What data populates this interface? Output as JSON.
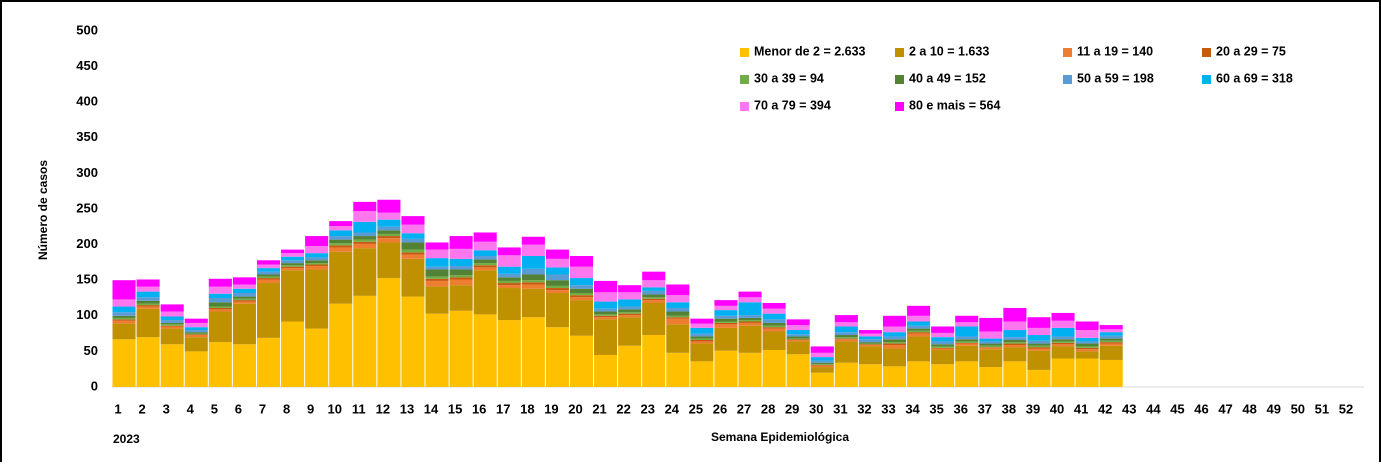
{
  "chart_data": {
    "type": "stacked-bar",
    "y_label": "Número de casos",
    "x_label": "Semana Epidemiológica",
    "year_label": "2023",
    "categories": [
      "1",
      "2",
      "3",
      "4",
      "5",
      "6",
      "7",
      "8",
      "9",
      "10",
      "11",
      "12",
      "13",
      "14",
      "15",
      "16",
      "17",
      "18",
      "19",
      "20",
      "21",
      "22",
      "23",
      "24",
      "25",
      "26",
      "27",
      "28",
      "29",
      "30",
      "31",
      "32",
      "33",
      "34",
      "35",
      "36",
      "37",
      "38",
      "39",
      "40",
      "41",
      "42",
      "43",
      "44",
      "45",
      "46",
      "47",
      "48",
      "49",
      "50",
      "51",
      "52"
    ],
    "ylim": [
      0,
      500
    ],
    "yticks": [
      0,
      50,
      100,
      150,
      200,
      250,
      300,
      350,
      400,
      450,
      500
    ],
    "series": [
      {
        "name": "Menor de 2 = 2.633",
        "color": "#ffc000",
        "values": [
          67,
          70,
          60,
          50,
          63,
          60,
          69,
          92,
          82,
          117,
          128,
          153,
          127,
          103,
          107,
          102,
          94,
          98,
          84,
          72,
          45,
          58,
          73,
          48,
          36,
          51,
          48,
          52,
          46,
          20,
          34,
          32,
          29,
          36,
          32,
          36,
          28,
          36,
          24,
          40,
          40,
          38,
          null,
          null,
          null,
          null,
          null,
          null,
          null,
          null,
          null,
          null
        ]
      },
      {
        "name": "2 a 10 = 1.633",
        "color": "#bf9000",
        "values": [
          22,
          40,
          22,
          20,
          43,
          57,
          77,
          72,
          83,
          73,
          67,
          50,
          53,
          38,
          36,
          62,
          45,
          40,
          48,
          50,
          50,
          40,
          45,
          40,
          25,
          32,
          38,
          26,
          18,
          8,
          30,
          25,
          25,
          35,
          20,
          22,
          25,
          20,
          27,
          17,
          10,
          20,
          null,
          null,
          null,
          null,
          null,
          null,
          null,
          null,
          null,
          null
        ]
      },
      {
        "name": "11 a 19 = 140",
        "color": "#ed7d31",
        "values": [
          4,
          3,
          3,
          3,
          3,
          3,
          5,
          3,
          5,
          6,
          6,
          6,
          6,
          8,
          8,
          4,
          4,
          6,
          4,
          4,
          3,
          3,
          4,
          8,
          3,
          5,
          4,
          4,
          2,
          2,
          3,
          2,
          5,
          4,
          2,
          3,
          2,
          3,
          3,
          3,
          3,
          3,
          null,
          null,
          null,
          null,
          null,
          null,
          null,
          null,
          null,
          null
        ]
      },
      {
        "name": "20 a 29 = 75",
        "color": "#c55a11",
        "values": [
          2,
          2,
          1,
          1,
          2,
          2,
          2,
          2,
          2,
          3,
          3,
          3,
          3,
          3,
          3,
          3,
          3,
          3,
          3,
          3,
          2,
          2,
          2,
          2,
          2,
          2,
          2,
          2,
          1,
          1,
          1,
          1,
          2,
          2,
          1,
          1,
          1,
          2,
          2,
          2,
          2,
          2,
          null,
          null,
          null,
          null,
          null,
          null,
          null,
          null,
          null,
          null
        ]
      },
      {
        "name": "30 a 39 = 94",
        "color": "#70ad47",
        "values": [
          2,
          2,
          2,
          1,
          2,
          2,
          2,
          2,
          2,
          3,
          3,
          3,
          4,
          3,
          3,
          3,
          3,
          3,
          3,
          3,
          2,
          2,
          2,
          2,
          2,
          2,
          2,
          2,
          1,
          1,
          2,
          1,
          2,
          2,
          2,
          2,
          2,
          2,
          2,
          2,
          2,
          2,
          null,
          null,
          null,
          null,
          null,
          null,
          null,
          null,
          null,
          null
        ]
      },
      {
        "name": "40 a 49 = 152",
        "color": "#548235",
        "values": [
          3,
          4,
          2,
          2,
          6,
          3,
          3,
          3,
          4,
          5,
          5,
          5,
          10,
          10,
          8,
          5,
          5,
          8,
          8,
          6,
          4,
          4,
          4,
          6,
          3,
          4,
          3,
          4,
          3,
          2,
          3,
          2,
          4,
          3,
          3,
          3,
          3,
          3,
          3,
          3,
          4,
          3,
          null,
          null,
          null,
          null,
          null,
          null,
          null,
          null,
          null,
          null
        ]
      },
      {
        "name": "50 a 59 = 198",
        "color": "#5b9bd5",
        "values": [
          5,
          5,
          4,
          3,
          6,
          5,
          4,
          4,
          4,
          5,
          5,
          5,
          5,
          4,
          5,
          5,
          5,
          8,
          8,
          5,
          4,
          4,
          5,
          5,
          4,
          4,
          4,
          5,
          3,
          3,
          4,
          4,
          4,
          4,
          4,
          4,
          3,
          4,
          4,
          4,
          3,
          4,
          null,
          null,
          null,
          null,
          null,
          null,
          null,
          null,
          null,
          null
        ]
      },
      {
        "name": "60 a 69 = 318",
        "color": "#00b0f0",
        "values": [
          8,
          8,
          5,
          4,
          6,
          6,
          5,
          5,
          6,
          8,
          15,
          10,
          8,
          12,
          10,
          8,
          10,
          18,
          10,
          10,
          10,
          10,
          5,
          8,
          8,
          8,
          18,
          8,
          6,
          5,
          8,
          4,
          6,
          6,
          6,
          14,
          4,
          10,
          8,
          12,
          5,
          5,
          null,
          null,
          null,
          null,
          null,
          null,
          null,
          null,
          null,
          null
        ]
      },
      {
        "name": "70 a 79 = 394",
        "color": "#ff77ee",
        "values": [
          10,
          7,
          7,
          6,
          10,
          6,
          5,
          5,
          10,
          6,
          15,
          10,
          12,
          12,
          14,
          12,
          16,
          16,
          12,
          16,
          13,
          10,
          10,
          10,
          6,
          6,
          7,
          7,
          7,
          6,
          6,
          4,
          8,
          8,
          6,
          6,
          10,
          12,
          10,
          10,
          11,
          4,
          null,
          null,
          null,
          null,
          null,
          null,
          null,
          null,
          null,
          null
        ]
      },
      {
        "name": "80 e mais = 564",
        "color": "#ff00ff",
        "values": [
          27,
          10,
          10,
          6,
          11,
          10,
          6,
          5,
          14,
          7,
          13,
          18,
          12,
          10,
          18,
          13,
          11,
          11,
          13,
          15,
          16,
          10,
          12,
          15,
          7,
          8,
          8,
          8,
          8,
          9,
          10,
          5,
          15,
          14,
          9,
          9,
          19,
          19,
          15,
          11,
          12,
          6,
          null,
          null,
          null,
          null,
          null,
          null,
          null,
          null,
          null,
          null
        ]
      }
    ]
  }
}
